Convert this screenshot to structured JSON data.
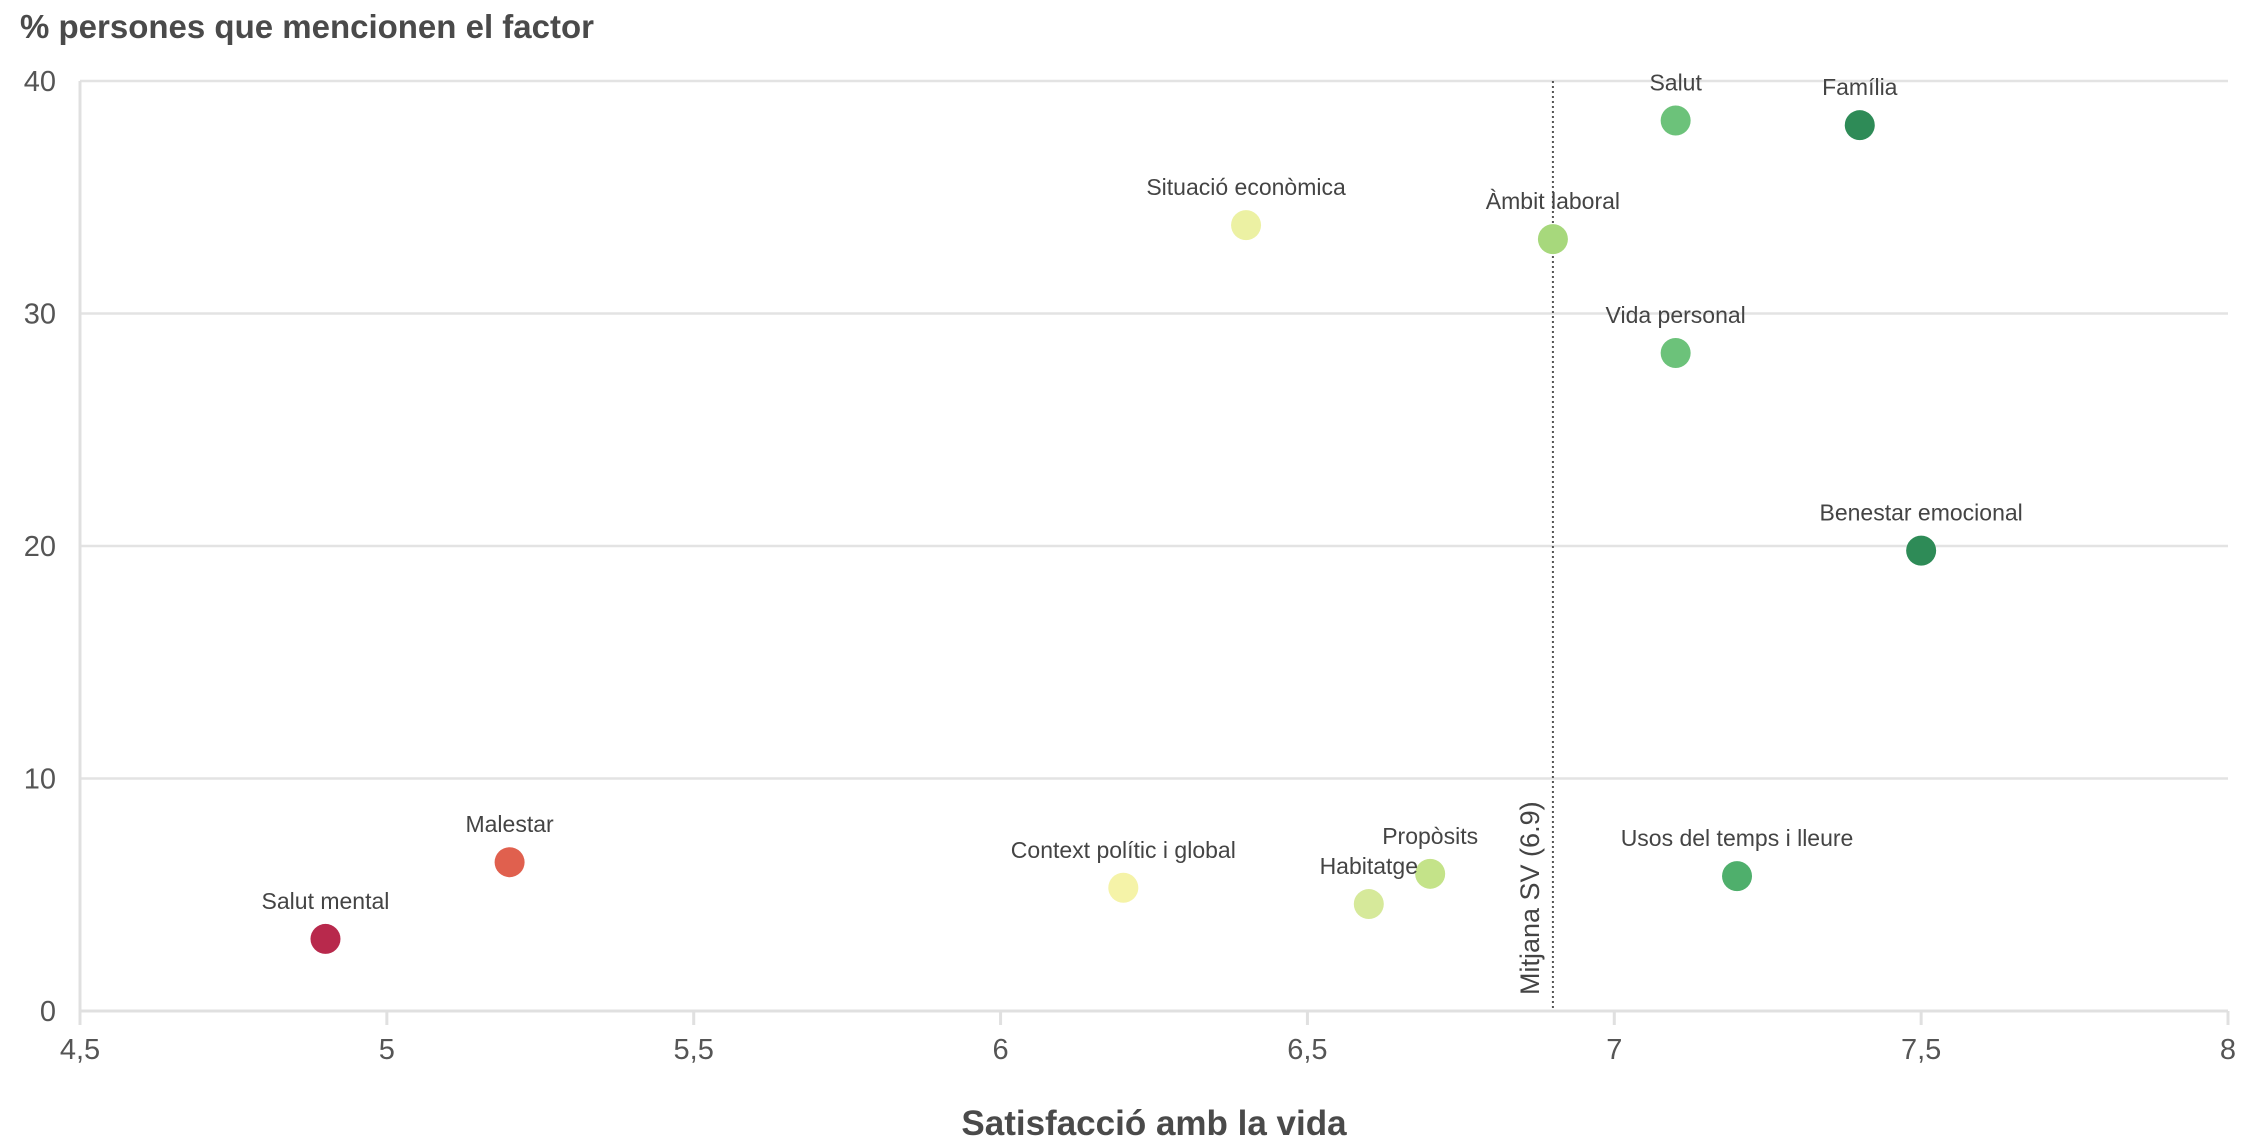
{
  "chart_data": {
    "type": "scatter",
    "title": "",
    "xlabel": "Satisfacció amb la vida",
    "ylabel": "% persones que mencionen el factor",
    "xlim": [
      4.5,
      8
    ],
    "ylim": [
      0,
      40
    ],
    "x_ticks": [
      {
        "value": 4.5,
        "label": "4,5"
      },
      {
        "value": 5,
        "label": "5"
      },
      {
        "value": 5.5,
        "label": "5,5"
      },
      {
        "value": 6,
        "label": "6"
      },
      {
        "value": 6.5,
        "label": "6,5"
      },
      {
        "value": 7,
        "label": "7"
      },
      {
        "value": 7.5,
        "label": "7,5"
      },
      {
        "value": 8,
        "label": "8"
      }
    ],
    "y_ticks": [
      {
        "value": 0,
        "label": "0"
      },
      {
        "value": 10,
        "label": "10"
      },
      {
        "value": 20,
        "label": "20"
      },
      {
        "value": 30,
        "label": "30"
      },
      {
        "value": 40,
        "label": "40"
      }
    ],
    "grid": "horizontal",
    "reference_line": {
      "x": 6.9,
      "label": "Mitjana SV (6.9)"
    },
    "points": [
      {
        "label": "Salut mental",
        "x": 4.9,
        "y": 3.1,
        "color": "#b8294c"
      },
      {
        "label": "Malestar",
        "x": 5.2,
        "y": 6.4,
        "color": "#e0604e"
      },
      {
        "label": "Context polític i global",
        "x": 6.2,
        "y": 5.3,
        "color": "#f5f3a8"
      },
      {
        "label": "Habitatge",
        "x": 6.6,
        "y": 4.6,
        "color": "#d6e99a"
      },
      {
        "label": "Propòsits",
        "x": 6.7,
        "y": 5.9,
        "color": "#c4e389"
      },
      {
        "label": "Situació econòmica",
        "x": 6.4,
        "y": 33.8,
        "color": "#ecf1a3"
      },
      {
        "label": "Àmbit laboral",
        "x": 6.9,
        "y": 33.2,
        "color": "#a7d87c"
      },
      {
        "label": "Salut",
        "x": 7.1,
        "y": 38.3,
        "color": "#6cc27a"
      },
      {
        "label": "Vida personal",
        "x": 7.1,
        "y": 28.3,
        "color": "#6cc27a"
      },
      {
        "label": "Família",
        "x": 7.4,
        "y": 38.1,
        "color": "#2e8b57"
      },
      {
        "label": "Benestar emocional",
        "x": 7.5,
        "y": 19.8,
        "color": "#2e8b57"
      },
      {
        "label": "Usos del temps i lleure",
        "x": 7.2,
        "y": 5.8,
        "color": "#4faf6c"
      }
    ]
  }
}
